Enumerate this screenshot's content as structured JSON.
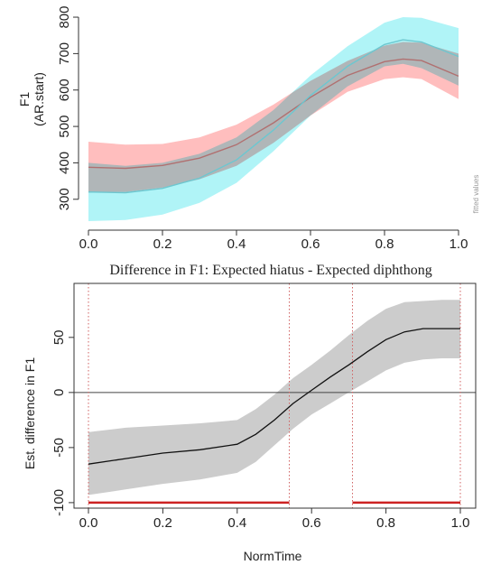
{
  "chart_data": [
    {
      "type": "line",
      "title": "",
      "xlabel": "",
      "ylabel": [
        "F1",
        "(AR.start)"
      ],
      "side_note": "fitted values",
      "xlim": [
        0,
        1
      ],
      "ylim": [
        240,
        810
      ],
      "x_ticks": [
        "0.0",
        "0.2",
        "0.4",
        "0.6",
        "0.8",
        "1.0"
      ],
      "y_ticks": [
        "300",
        "400",
        "500",
        "600",
        "700",
        "800"
      ],
      "colors": {
        "series_a_band": "#ffb3b3",
        "series_a_line": "#b07070",
        "series_b_band": "#b0f4f7",
        "series_b_line": "#6cc7d0",
        "overlap": "#c8c8c8"
      },
      "series": [
        {
          "x": [
            0,
            0.1,
            0.2,
            0.3,
            0.4,
            0.5,
            0.6,
            0.7,
            0.8,
            0.85,
            0.9,
            1.0
          ],
          "values": [
            388,
            385,
            393,
            413,
            450,
            510,
            580,
            640,
            678,
            685,
            681,
            638
          ],
          "upper": [
            458,
            450,
            452,
            470,
            505,
            560,
            625,
            680,
            722,
            732,
            730,
            700
          ],
          "lower": [
            318,
            320,
            332,
            355,
            392,
            455,
            530,
            595,
            630,
            635,
            630,
            575
          ]
        },
        {
          "x": [
            0,
            0.1,
            0.2,
            0.3,
            0.4,
            0.5,
            0.6,
            0.7,
            0.8,
            0.85,
            0.9,
            1.0
          ],
          "values": [
            320,
            318,
            330,
            358,
            408,
            490,
            585,
            665,
            725,
            738,
            732,
            692
          ],
          "upper": [
            400,
            392,
            400,
            425,
            470,
            545,
            640,
            720,
            785,
            800,
            798,
            770
          ],
          "lower": [
            240,
            243,
            258,
            290,
            345,
            432,
            530,
            610,
            665,
            672,
            660,
            612
          ]
        }
      ]
    },
    {
      "type": "line",
      "title": "Difference in F1: Expected hiatus - Expected diphthong",
      "xlabel": "NormTime",
      "ylabel": "Est. difference in F1",
      "xlim": [
        0,
        1
      ],
      "ylim": [
        -105,
        90
      ],
      "x_ticks": [
        "0.0",
        "0.2",
        "0.4",
        "0.6",
        "0.8",
        "1.0"
      ],
      "y_ticks": [
        "50",
        "0",
        "-50",
        "-100"
      ],
      "zero_line": 0,
      "vlines": [
        0,
        0.54,
        0.71,
        1.0
      ],
      "significant_intervals": [
        [
          0,
          0.54
        ],
        [
          0.71,
          1.0
        ]
      ],
      "significance_y": -100,
      "colors": {
        "band": "#cccccc",
        "line": "#111111",
        "vline": "#d06060",
        "significance": "#cc2222"
      },
      "series": [
        {
          "x": [
            0,
            0.1,
            0.2,
            0.3,
            0.4,
            0.45,
            0.5,
            0.55,
            0.6,
            0.65,
            0.7,
            0.75,
            0.8,
            0.85,
            0.9,
            0.95,
            1.0
          ],
          "values": [
            -65,
            -60,
            -55,
            -52,
            -47,
            -38,
            -25,
            -10,
            2,
            14,
            25,
            37,
            48,
            55,
            58,
            58,
            58
          ],
          "upper": [
            -36,
            -32,
            -30,
            -28,
            -25,
            -15,
            -2,
            13,
            25,
            38,
            52,
            65,
            76,
            82,
            83,
            84,
            84
          ],
          "lower": [
            -93,
            -88,
            -83,
            -79,
            -73,
            -63,
            -48,
            -33,
            -20,
            -10,
            0,
            10,
            20,
            27,
            30,
            31,
            31
          ]
        }
      ]
    }
  ]
}
